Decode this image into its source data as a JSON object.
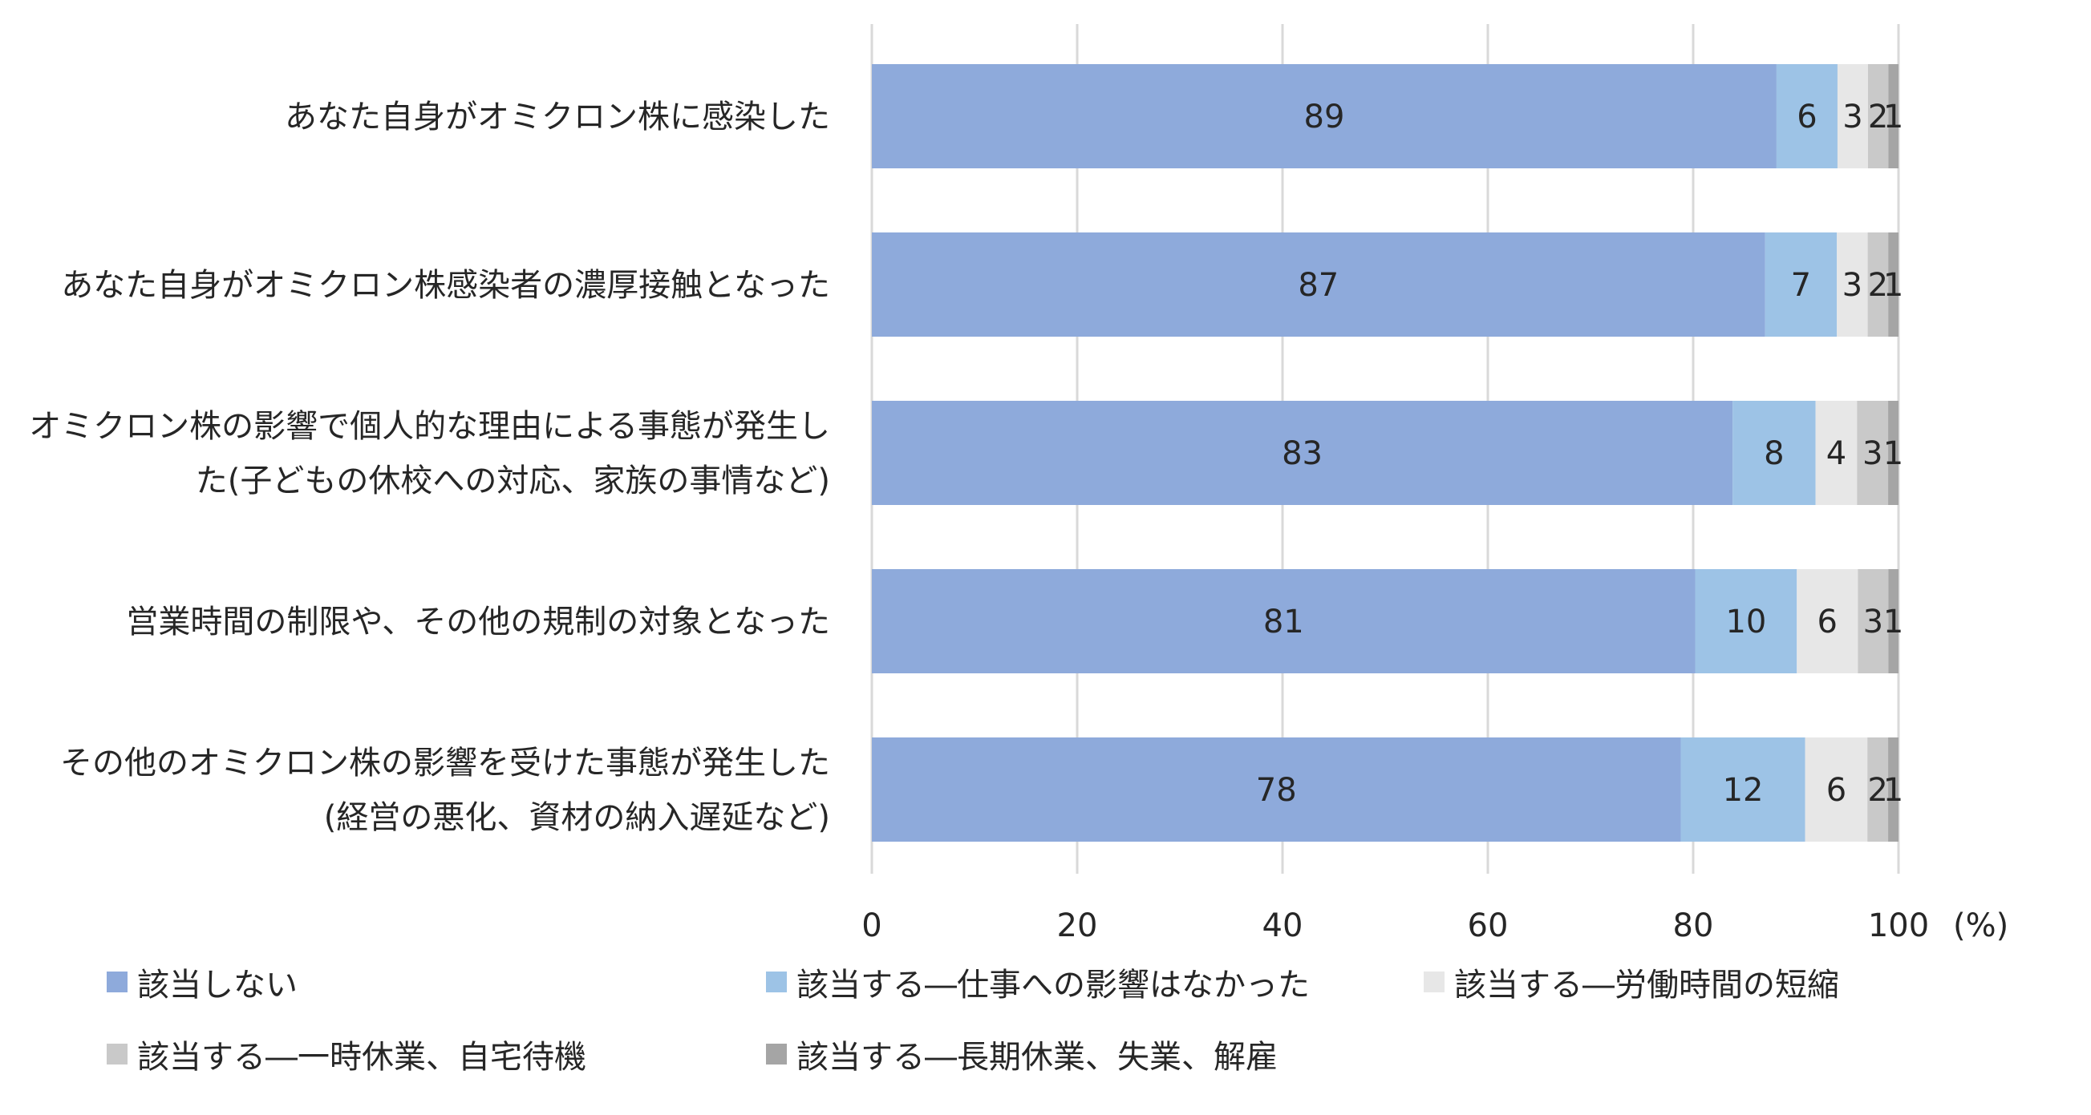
{
  "chart_data": {
    "type": "bar",
    "orientation": "horizontal",
    "stacked": true,
    "unit_label": "(%)",
    "categories": [
      [
        "あなた自身がオミクロン株に感染した"
      ],
      [
        "あなた自身がオミクロン株感染者の濃厚接触となった"
      ],
      [
        "オミクロン株の影響で個人的な理由による事態が発生し",
        "た(子どもの休校への対応、家族の事情など)"
      ],
      [
        "営業時間の制限や、その他の規制の対象となった"
      ],
      [
        "その他のオミクロン株の影響を受けた事態が発生した",
        "(経営の悪化、資材の納入遅延など)"
      ]
    ],
    "series": [
      {
        "name": "該当しない",
        "color": "#8eaadb",
        "values": [
          89,
          87,
          83,
          81,
          78
        ]
      },
      {
        "name": "該当する―仕事への影響はなかった",
        "color": "#9dc3e6",
        "values": [
          6,
          7,
          8,
          10,
          12
        ]
      },
      {
        "name": "該当する―労働時間の短縮",
        "color": "#e7e7e7",
        "values": [
          3,
          3,
          4,
          6,
          6
        ]
      },
      {
        "name": "該当する―一時休業、自宅待機",
        "color": "#c9c9c9",
        "values": [
          2,
          2,
          3,
          3,
          2
        ]
      },
      {
        "name": "該当する―長期休業、失業、解雇",
        "color": "#a5a5a5",
        "values": [
          1,
          1,
          1,
          1,
          1
        ]
      }
    ],
    "xlim": [
      0,
      100
    ],
    "xticks": [
      "0",
      "20",
      "40",
      "60",
      "80",
      "100"
    ],
    "grid": true,
    "legend_position": "bottom"
  }
}
